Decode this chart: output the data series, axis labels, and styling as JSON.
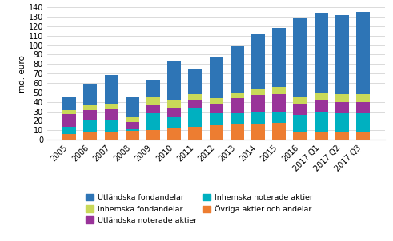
{
  "categories": [
    "2005",
    "2006",
    "2007",
    "2008",
    "2009",
    "2010",
    "2011",
    "2012",
    "2013",
    "2014",
    "2015",
    "2016",
    "2017 Q1",
    "2017 Q2",
    "2017 Q3"
  ],
  "ovriga_aktier": [
    6,
    8,
    8,
    9,
    10,
    12,
    14,
    15,
    16,
    17,
    18,
    8,
    8,
    8,
    8
  ],
  "inhemska_not": [
    8,
    13,
    13,
    2,
    19,
    12,
    20,
    13,
    13,
    13,
    12,
    18,
    22,
    20,
    20
  ],
  "utlandska_not": [
    13,
    10,
    12,
    8,
    8,
    10,
    8,
    10,
    15,
    17,
    18,
    12,
    12,
    12,
    12
  ],
  "inhemska_fond": [
    4,
    5,
    5,
    5,
    9,
    8,
    6,
    6,
    6,
    7,
    8,
    8,
    8,
    8,
    8
  ],
  "utlandska_fond": [
    15,
    23,
    30,
    22,
    17,
    41,
    27,
    43,
    49,
    58,
    62,
    83,
    84,
    84,
    87
  ],
  "colors": {
    "utlandska_fond": "#2E75B6",
    "utlandska_not": "#993399",
    "ovriga_aktier": "#ED7D31",
    "inhemska_fond": "#C9D959",
    "inhemska_not": "#00B0C0"
  },
  "legend_labels": {
    "utlandska_fond": "Utländska fondandelar",
    "inhemska_fond": "Inhemska fondandelar",
    "utlandska_not": "Utländska noterade aktier",
    "inhemska_not": "Inhemska noterade aktier",
    "ovriga_aktier": "Övriga aktier och andelar"
  },
  "ylabel": "md. euro",
  "ylim": [
    0,
    140
  ],
  "yticks": [
    0,
    10,
    20,
    30,
    40,
    50,
    60,
    70,
    80,
    90,
    100,
    110,
    120,
    130,
    140
  ]
}
